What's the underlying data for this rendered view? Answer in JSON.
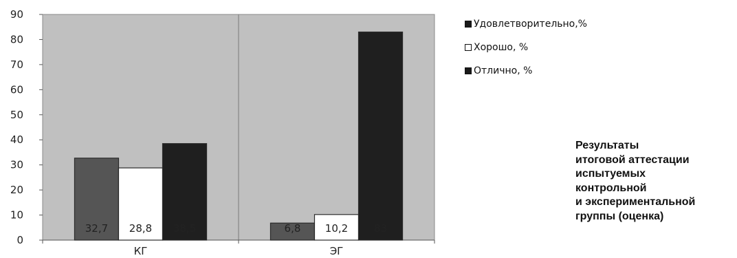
{
  "chart_data": {
    "type": "bar",
    "categories": [
      "КГ",
      "ЭГ"
    ],
    "series": [
      {
        "name": "Удовлетворительно,%",
        "values": [
          32.7,
          6.8
        ],
        "labels": [
          "32,7",
          "6,8"
        ],
        "color": "#555555",
        "legend_color": "#1a1a1a"
      },
      {
        "name": "Хорошо, %",
        "values": [
          28.8,
          10.2
        ],
        "labels": [
          "28,8",
          "10,2"
        ],
        "color": "#ffffff",
        "legend_color": "#ffffff"
      },
      {
        "name": "Отлично, %",
        "values": [
          38.5,
          83
        ],
        "labels": [
          "38,5",
          "83"
        ],
        "color": "#1f1f1f",
        "legend_color": "#1a1a1a"
      }
    ],
    "ylim": [
      0,
      90
    ],
    "yticks": [
      "0",
      "10",
      "20",
      "30",
      "40",
      "50",
      "60",
      "70",
      "80",
      "90"
    ],
    "grid": false,
    "plot_background": "#c0c0c0",
    "legend_position": "right"
  },
  "caption": {
    "lines": [
      "Результаты",
      "итоговой аттестации",
      "испытуемых",
      "контрольной",
      "и экспериментальной",
      "группы (оценка)"
    ]
  }
}
